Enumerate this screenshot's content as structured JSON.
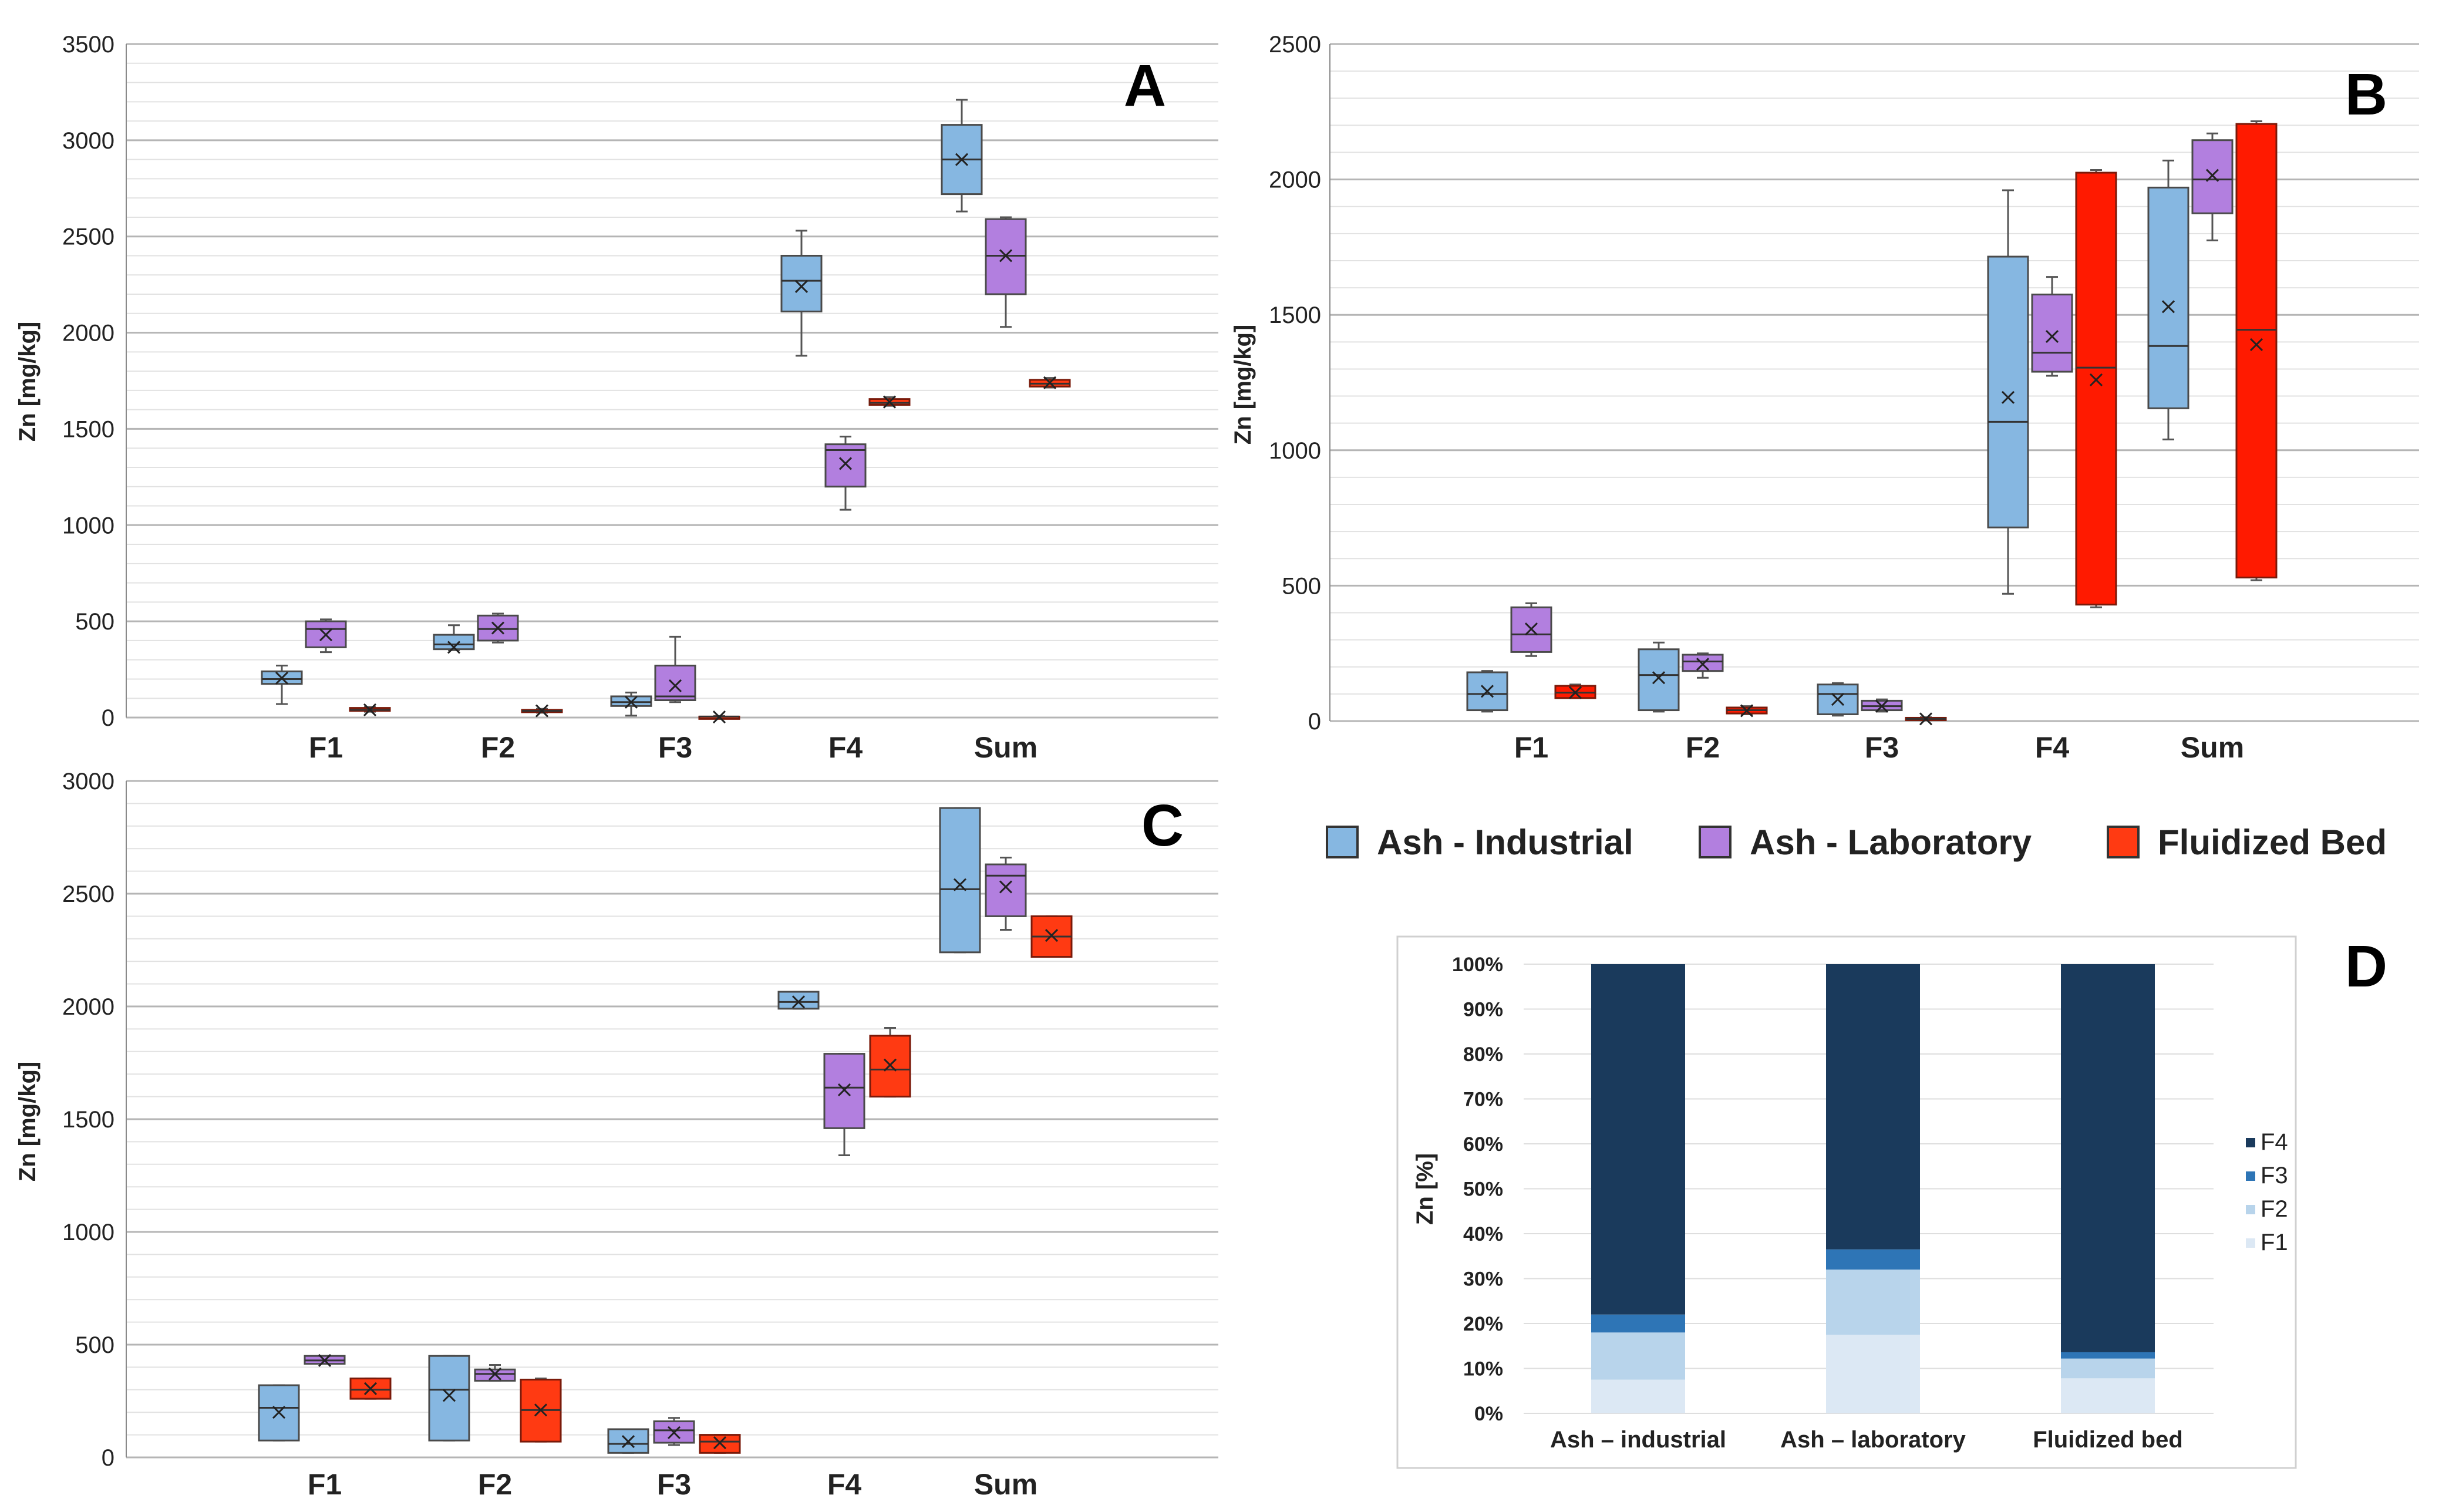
{
  "legend": {
    "items": [
      {
        "label": "Ash - Industrial",
        "color": "#86b7e1"
      },
      {
        "label": "Ash - Laboratory",
        "color": "#b27fdf"
      },
      {
        "label": "Fluidized Bed",
        "color": "#ff3a12"
      }
    ]
  },
  "colors": {
    "industrial": "#86b7e1",
    "laboratory": "#b27fdf",
    "fluidized_B": "#ff1a00",
    "fluidized": "#ff3a12",
    "F1": "#dce8f4",
    "F2": "#b8d4eb",
    "F3": "#2e75b6",
    "F4": "#1a3a5c"
  },
  "chart_data": [
    {
      "panel": "A",
      "type": "box",
      "ylabel": "Zn [mg/kg]",
      "ylim": [
        0,
        3500
      ],
      "yticks": [
        "0",
        "500",
        "1000",
        "1500",
        "2000",
        "2500",
        "3000",
        "3500"
      ],
      "categories": [
        "F1",
        "F2",
        "F3",
        "F4",
        "Sum"
      ],
      "series": [
        {
          "name": "Ash - Industrial",
          "boxes": [
            {
              "min": 70,
              "q1": 175,
              "median": 200,
              "q3": 240,
              "max": 270,
              "mean": 205
            },
            {
              "min": 350,
              "q1": 355,
              "median": 380,
              "q3": 430,
              "max": 480,
              "mean": 365
            },
            {
              "min": 10,
              "q1": 60,
              "median": 80,
              "q3": 110,
              "max": 130,
              "mean": 80
            },
            {
              "min": 1880,
              "q1": 2110,
              "median": 2270,
              "q3": 2400,
              "max": 2530,
              "mean": 2240
            },
            {
              "min": 2630,
              "q1": 2720,
              "median": 2900,
              "q3": 3080,
              "max": 3210,
              "mean": 2900
            }
          ]
        },
        {
          "name": "Ash - Laboratory",
          "boxes": [
            {
              "min": 340,
              "q1": 365,
              "median": 460,
              "q3": 500,
              "max": 510,
              "mean": 430
            },
            {
              "min": 390,
              "q1": 400,
              "median": 460,
              "q3": 530,
              "max": 540,
              "mean": 465
            },
            {
              "min": 80,
              "q1": 90,
              "median": 110,
              "q3": 270,
              "max": 420,
              "mean": 165
            },
            {
              "min": 1080,
              "q1": 1200,
              "median": 1390,
              "q3": 1420,
              "max": 1460,
              "mean": 1320
            },
            {
              "min": 2030,
              "q1": 2200,
              "median": 2400,
              "q3": 2590,
              "max": 2600,
              "mean": 2400
            }
          ]
        },
        {
          "name": "Fluidized Bed",
          "boxes": [
            {
              "min": 30,
              "q1": 35,
              "median": 40,
              "q3": 50,
              "max": 55,
              "mean": 40
            },
            {
              "min": 25,
              "q1": 28,
              "median": 35,
              "q3": 40,
              "max": 45,
              "mean": 35
            },
            {
              "min": 0,
              "q1": 0,
              "median": 5,
              "q3": 5,
              "max": 8,
              "mean": 3
            },
            {
              "min": 1620,
              "q1": 1625,
              "median": 1635,
              "q3": 1655,
              "max": 1665,
              "mean": 1640
            },
            {
              "min": 1715,
              "q1": 1720,
              "median": 1735,
              "q3": 1755,
              "max": 1765,
              "mean": 1740
            }
          ]
        }
      ]
    },
    {
      "panel": "B",
      "type": "box",
      "ylabel": "Zn [mg/kg]",
      "ylim": [
        0,
        2500
      ],
      "yticks": [
        "0",
        "500",
        "1000",
        "1500",
        "2000",
        "2500"
      ],
      "categories": [
        "F1",
        "F2",
        "F3",
        "F4",
        "Sum"
      ],
      "series": [
        {
          "name": "Ash - Industrial",
          "boxes": [
            {
              "min": 35,
              "q1": 40,
              "median": 100,
              "q3": 180,
              "max": 185,
              "mean": 110
            },
            {
              "min": 35,
              "q1": 40,
              "median": 170,
              "q3": 265,
              "max": 290,
              "mean": 160
            },
            {
              "min": 20,
              "q1": 25,
              "median": 100,
              "q3": 135,
              "max": 140,
              "mean": 80
            },
            {
              "min": 470,
              "q1": 715,
              "median": 1105,
              "q3": 1715,
              "max": 1960,
              "mean": 1195
            },
            {
              "min": 1040,
              "q1": 1155,
              "median": 1385,
              "q3": 1970,
              "max": 2070,
              "mean": 1530
            }
          ]
        },
        {
          "name": "Ash - Laboratory",
          "boxes": [
            {
              "min": 240,
              "q1": 255,
              "median": 320,
              "q3": 420,
              "max": 435,
              "mean": 340
            },
            {
              "min": 160,
              "q1": 185,
              "median": 220,
              "q3": 245,
              "max": 250,
              "mean": 210
            },
            {
              "min": 35,
              "q1": 40,
              "median": 55,
              "q3": 75,
              "max": 80,
              "mean": 55
            },
            {
              "min": 1275,
              "q1": 1290,
              "median": 1360,
              "q3": 1575,
              "max": 1640,
              "mean": 1420
            },
            {
              "min": 1775,
              "q1": 1875,
              "median": 2000,
              "q3": 2145,
              "max": 2170,
              "mean": 2015
            }
          ]
        },
        {
          "name": "Fluidized Bed",
          "boxes": [
            {
              "min": 85,
              "q1": 85,
              "median": 105,
              "q3": 130,
              "max": 135,
              "mean": 105
            },
            {
              "min": 25,
              "q1": 28,
              "median": 40,
              "q3": 50,
              "max": 55,
              "mean": 38
            },
            {
              "min": 3,
              "q1": 5,
              "median": 8,
              "q3": 12,
              "max": 14,
              "mean": 8
            },
            {
              "min": 420,
              "q1": 430,
              "median": 1305,
              "q3": 2025,
              "max": 2035,
              "mean": 1260
            },
            {
              "min": 520,
              "q1": 530,
              "median": 1445,
              "q3": 2205,
              "max": 2215,
              "mean": 1390
            }
          ]
        }
      ]
    },
    {
      "panel": "C",
      "type": "box",
      "ylabel": "Zn [mg/kg]",
      "ylim": [
        0,
        3000
      ],
      "yticks": [
        "0",
        "500",
        "1000",
        "1500",
        "2000",
        "2500",
        "3000"
      ],
      "categories": [
        "F1",
        "F2",
        "F3",
        "F4",
        "Sum"
      ],
      "series": [
        {
          "name": "Ash - Industrial",
          "boxes": [
            {
              "min": 75,
              "q1": 75,
              "median": 220,
              "q3": 320,
              "max": 320,
              "mean": 200
            },
            {
              "min": 75,
              "q1": 75,
              "median": 300,
              "q3": 450,
              "max": 450,
              "mean": 275
            },
            {
              "min": 20,
              "q1": 20,
              "median": 60,
              "q3": 125,
              "max": 125,
              "mean": 70
            },
            {
              "min": 1990,
              "q1": 1990,
              "median": 2020,
              "q3": 2065,
              "max": 2065,
              "mean": 2020
            },
            {
              "min": 2240,
              "q1": 2240,
              "median": 2520,
              "q3": 2880,
              "max": 2880,
              "mean": 2540
            }
          ]
        },
        {
          "name": "Ash - Laboratory",
          "boxes": [
            {
              "min": 415,
              "q1": 415,
              "median": 430,
              "q3": 450,
              "max": 450,
              "mean": 430
            },
            {
              "min": 340,
              "q1": 340,
              "median": 370,
              "q3": 390,
              "max": 410,
              "mean": 370
            },
            {
              "min": 55,
              "q1": 65,
              "median": 120,
              "q3": 160,
              "max": 175,
              "mean": 110
            },
            {
              "min": 1340,
              "q1": 1460,
              "median": 1640,
              "q3": 1790,
              "max": 1790,
              "mean": 1630
            },
            {
              "min": 2340,
              "q1": 2400,
              "median": 2580,
              "q3": 2630,
              "max": 2660,
              "mean": 2530
            }
          ]
        },
        {
          "name": "Fluidized Bed",
          "boxes": [
            {
              "min": 260,
              "q1": 260,
              "median": 300,
              "q3": 350,
              "max": 350,
              "mean": 305
            },
            {
              "min": 70,
              "q1": 70,
              "median": 210,
              "q3": 345,
              "max": 350,
              "mean": 210
            },
            {
              "min": 20,
              "q1": 20,
              "median": 70,
              "q3": 100,
              "max": 100,
              "mean": 65
            },
            {
              "min": 1600,
              "q1": 1600,
              "median": 1720,
              "q3": 1870,
              "max": 1905,
              "mean": 1740
            },
            {
              "min": 2220,
              "q1": 2220,
              "median": 2310,
              "q3": 2400,
              "max": 2400,
              "mean": 2315
            }
          ]
        }
      ]
    },
    {
      "panel": "D",
      "type": "bar",
      "stacked": true,
      "ylabel": "Zn [%]",
      "ylim": [
        0,
        100
      ],
      "yticks": [
        "0%",
        "10%",
        "20%",
        "30%",
        "40%",
        "50%",
        "60%",
        "70%",
        "80%",
        "90%",
        "100%"
      ],
      "categories": [
        "Ash – industrial",
        "Ash – laboratory",
        "Fluidized bed"
      ],
      "legend_labels": [
        "F4",
        "F3",
        "F2",
        "F1"
      ],
      "series": [
        {
          "name": "F1",
          "values": [
            7.5,
            17.5,
            7.8
          ]
        },
        {
          "name": "F2",
          "values": [
            10.5,
            14.5,
            4.4
          ]
        },
        {
          "name": "F3",
          "values": [
            4.0,
            4.5,
            1.4
          ]
        },
        {
          "name": "F4",
          "values": [
            78.0,
            63.5,
            86.4
          ]
        }
      ]
    }
  ]
}
